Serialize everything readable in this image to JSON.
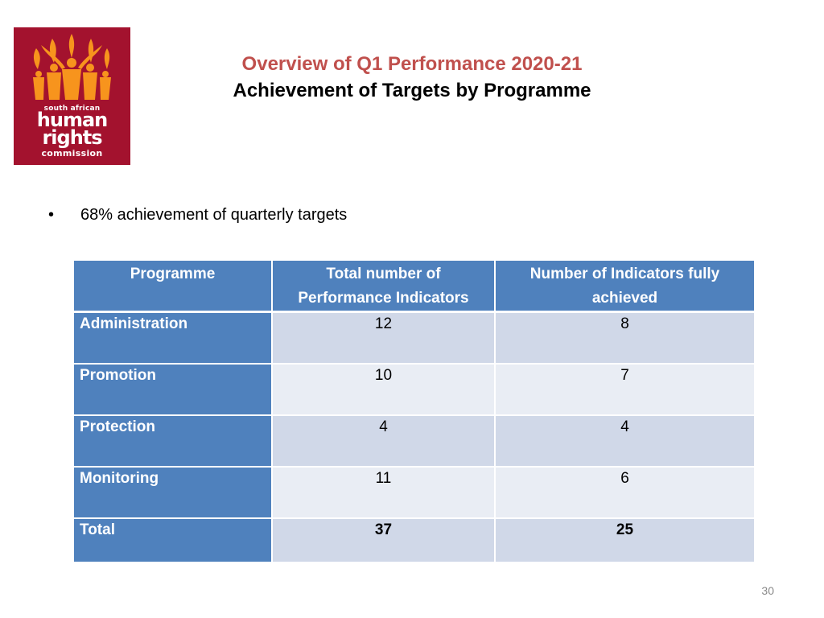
{
  "logo": {
    "line1": "south african",
    "line2": "human",
    "line3": "rights",
    "line4": "commission"
  },
  "title": {
    "line1": "Overview of Q1 Performance 2020-21",
    "line2": "Achievement of Targets by Programme"
  },
  "bullet": {
    "symbol": "•",
    "text": "68% achievement of quarterly targets"
  },
  "table": {
    "headers": [
      "Programme",
      "Total number of Performance Indicators",
      "Number of Indicators fully achieved"
    ],
    "rows": [
      {
        "programme": "Administration",
        "total": "12",
        "achieved": "8"
      },
      {
        "programme": "Promotion",
        "total": "10",
        "achieved": "7"
      },
      {
        "programme": "Protection",
        "total": "4",
        "achieved": "4"
      },
      {
        "programme": "Monitoring",
        "total": "11",
        "achieved": "6"
      },
      {
        "programme": "Total",
        "total": "37",
        "achieved": "25"
      }
    ]
  },
  "page_number": "30",
  "colors": {
    "logo_bg": "#a3122e",
    "logo_flame": "#f7941d",
    "title_accent": "#c0504d",
    "header_blue": "#4f81bd",
    "row_light1": "#d0d8e8",
    "row_light2": "#e9edf4"
  }
}
